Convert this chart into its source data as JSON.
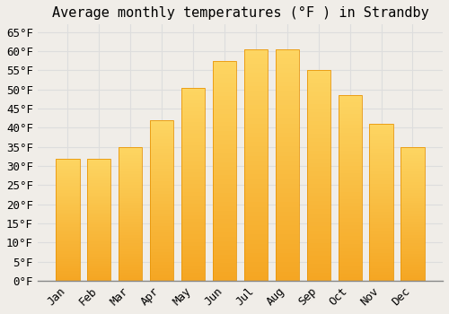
{
  "title": "Average monthly temperatures (°F ) in Strandby",
  "months": [
    "Jan",
    "Feb",
    "Mar",
    "Apr",
    "May",
    "Jun",
    "Jul",
    "Aug",
    "Sep",
    "Oct",
    "Nov",
    "Dec"
  ],
  "values": [
    32,
    32,
    35,
    42,
    50.5,
    57.5,
    60.5,
    60.5,
    55,
    48.5,
    41,
    35
  ],
  "bar_color_top": "#FDD663",
  "bar_color_bottom": "#F5A623",
  "bar_edge_color": "#E8960A",
  "background_color": "#F0EDE8",
  "grid_color": "#DDDDDD",
  "ylim": [
    0,
    67
  ],
  "yticks": [
    0,
    5,
    10,
    15,
    20,
    25,
    30,
    35,
    40,
    45,
    50,
    55,
    60,
    65
  ],
  "title_fontsize": 11,
  "tick_fontsize": 9,
  "font_family": "monospace"
}
